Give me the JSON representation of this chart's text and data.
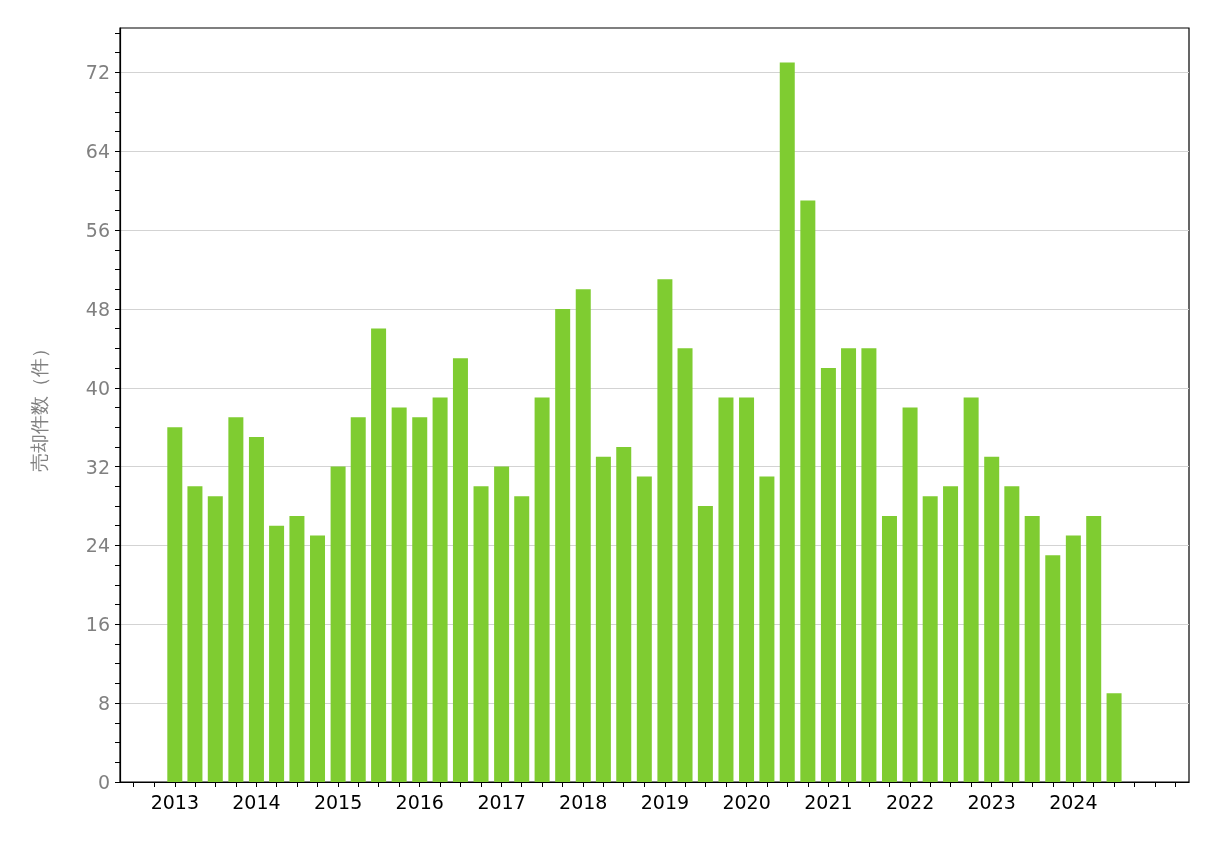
{
  "chart_data": {
    "type": "bar",
    "ylabel": "売却件数（件）",
    "x": [
      "2013-01",
      "2013-04",
      "2013-07",
      "2013-10",
      "2014-01",
      "2014-04",
      "2014-07",
      "2014-10",
      "2015-01",
      "2015-04",
      "2015-07",
      "2015-10",
      "2016-01",
      "2016-04",
      "2016-07",
      "2016-10",
      "2017-01",
      "2017-04",
      "2017-07",
      "2017-10",
      "2018-01",
      "2018-04",
      "2018-07",
      "2018-10",
      "2019-01",
      "2019-04",
      "2019-07",
      "2019-10",
      "2020-01",
      "2020-04",
      "2020-07",
      "2020-10",
      "2021-01",
      "2021-04",
      "2021-07",
      "2021-10",
      "2022-01",
      "2022-04",
      "2022-07",
      "2022-10",
      "2023-01",
      "2023-04",
      "2023-07",
      "2023-10",
      "2024-01",
      "2024-04",
      "2024-07"
    ],
    "values": [
      36,
      30,
      29,
      37,
      35,
      26,
      27,
      25,
      32,
      37,
      46,
      38,
      37,
      39,
      43,
      30,
      32,
      29,
      39,
      48,
      50,
      33,
      34,
      31,
      51,
      44,
      28,
      39,
      39,
      31,
      73,
      59,
      42,
      44,
      44,
      27,
      38,
      29,
      30,
      39,
      33,
      30,
      27,
      23,
      25,
      27,
      9
    ],
    "color": "#7fcc31",
    "xlim": [
      "2012-05",
      "2025-06"
    ],
    "xticks": [
      {
        "value": "2012-07",
        "label": null
      },
      {
        "value": "2012-10",
        "label": null
      },
      "2013",
      {
        "value": "2013-04",
        "label": null
      },
      {
        "value": "2013-07",
        "label": null
      },
      {
        "value": "2013-10",
        "label": null
      },
      "2014",
      {
        "value": "2014-04",
        "label": null
      },
      {
        "value": "2014-07",
        "label": null
      },
      {
        "value": "2014-10",
        "label": null
      },
      "2015",
      {
        "value": "2015-04",
        "label": null
      },
      {
        "value": "2015-07",
        "label": null
      },
      {
        "value": "2015-10",
        "label": null
      },
      "2016",
      {
        "value": "2016-04",
        "label": null
      },
      {
        "value": "2016-07",
        "label": null
      },
      {
        "value": "2016-10",
        "label": null
      },
      "2017",
      {
        "value": "2017-04",
        "label": null
      },
      {
        "value": "2017-07",
        "label": null
      },
      {
        "value": "2017-10",
        "label": null
      },
      "2018",
      {
        "value": "2018-04",
        "label": null
      },
      {
        "value": "2018-07",
        "label": null
      },
      {
        "value": "2018-10",
        "label": null
      },
      "2019",
      {
        "value": "2019-04",
        "label": null
      },
      {
        "value": "2019-07",
        "label": null
      },
      {
        "value": "2019-10",
        "label": null
      },
      "2020",
      {
        "value": "2020-04",
        "label": null
      },
      {
        "value": "2020-07",
        "label": null
      },
      {
        "value": "2020-10",
        "label": null
      },
      "2021",
      {
        "value": "2021-04",
        "label": null
      },
      {
        "value": "2021-07",
        "label": null
      },
      {
        "value": "2021-10",
        "label": null
      },
      "2022",
      {
        "value": "2022-04",
        "label": null
      },
      {
        "value": "2022-07",
        "label": null
      },
      {
        "value": "2022-10",
        "label": null
      },
      "2023",
      {
        "value": "2023-04",
        "label": null
      },
      {
        "value": "2023-07",
        "label": null
      },
      {
        "value": "2023-10",
        "label": null
      },
      "2024",
      {
        "value": "2024-04",
        "label": null
      },
      {
        "value": "2024-07",
        "label": null
      },
      {
        "value": "2024-10",
        "label": null
      },
      {
        "value": "2025-01",
        "label": null
      },
      {
        "value": "2025-04",
        "label": null
      }
    ],
    "ylim": [
      0,
      76.5
    ],
    "yticks": [
      0,
      {
        "value": 2,
        "label": null
      },
      {
        "value": 4,
        "label": null
      },
      {
        "value": 6,
        "label": null
      },
      8,
      {
        "value": 10,
        "label": null
      },
      {
        "value": 12,
        "label": null
      },
      {
        "value": 14,
        "label": null
      },
      16,
      {
        "value": 18,
        "label": null
      },
      {
        "value": 20,
        "label": null
      },
      {
        "value": 22,
        "label": null
      },
      24,
      {
        "value": 26,
        "label": null
      },
      {
        "value": 28,
        "label": null
      },
      {
        "value": 30,
        "label": null
      },
      32,
      {
        "value": 34,
        "label": null
      },
      {
        "value": 36,
        "label": null
      },
      {
        "value": 38,
        "label": null
      },
      40,
      {
        "value": 42,
        "label": null
      },
      {
        "value": 44,
        "label": null
      },
      {
        "value": 46,
        "label": null
      },
      48,
      {
        "value": 50,
        "label": null
      },
      {
        "value": 52,
        "label": null
      },
      {
        "value": 54,
        "label": null
      },
      56,
      {
        "value": 58,
        "label": null
      },
      {
        "value": 60,
        "label": null
      },
      {
        "value": 62,
        "label": null
      },
      64,
      {
        "value": 66,
        "label": null
      },
      {
        "value": 68,
        "label": null
      },
      {
        "value": 70,
        "label": null
      },
      72,
      {
        "value": 74,
        "label": null
      },
      {
        "value": 76,
        "label": null
      }
    ],
    "grid": "y"
  }
}
